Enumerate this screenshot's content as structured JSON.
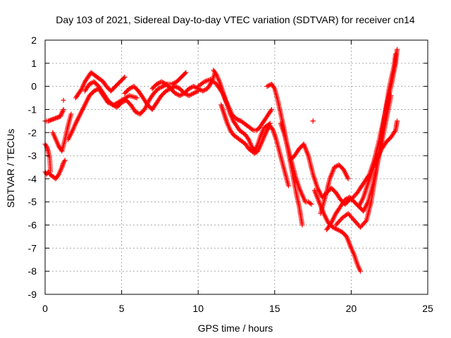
{
  "chart_data": {
    "type": "scatter",
    "title": "Day 103 of 2021, Sidereal Day-to-day VTEC variation (SDTVAR) for receiver cn14",
    "xlabel": "GPS time / hours",
    "ylabel": "SDTVAR / TECUs",
    "xlim": [
      0,
      25
    ],
    "ylim": [
      -9,
      2
    ],
    "xticks": [
      "0",
      "5",
      "10",
      "15",
      "20",
      "25"
    ],
    "yticks": [
      "2",
      "1",
      "0",
      "-1",
      "-2",
      "-3",
      "-4",
      "-5",
      "-6",
      "-7",
      "-8",
      "-9"
    ],
    "grid": true,
    "marker": "+",
    "color": "#ff0000",
    "series": [
      {
        "x": [
          0.0,
          0.1,
          0.2,
          0.3,
          0.5,
          0.7,
          0.9,
          1.1,
          1.2,
          1.3
        ],
        "y": [
          -3.7,
          -3.8,
          -3.7,
          -3.8,
          -3.9,
          -4.0,
          -3.8,
          -3.5,
          -3.3,
          -3.2
        ]
      },
      {
        "x": [
          0.0,
          0.1,
          0.2,
          0.3,
          0.35
        ],
        "y": [
          -2.5,
          -2.6,
          -2.8,
          -3.1,
          -3.7
        ]
      },
      {
        "x": [
          0.0,
          0.2,
          0.4,
          0.6,
          0.8,
          1.0,
          1.1,
          1.2
        ],
        "y": [
          -1.5,
          -1.5,
          -1.45,
          -1.4,
          -1.35,
          -1.3,
          -1.15,
          -1.0
        ]
      },
      {
        "x": [
          0.5,
          0.7,
          0.9,
          1.1,
          1.3,
          1.5,
          1.7
        ],
        "y": [
          -2.0,
          -2.3,
          -2.6,
          -2.8,
          -2.3,
          -1.7,
          -1.2
        ]
      },
      {
        "x": [
          1.5,
          1.8,
          2.0,
          2.3,
          2.6,
          2.9,
          3.2,
          3.5,
          3.8,
          4.1,
          4.5,
          5.0,
          5.5,
          6.0
        ],
        "y": [
          -2.3,
          -1.9,
          -1.6,
          -1.2,
          -0.8,
          -0.4,
          -0.2,
          -0.1,
          -0.4,
          -0.7,
          -0.8,
          -0.6,
          -0.4,
          -0.5
        ]
      },
      {
        "x": [
          2.0,
          2.2,
          2.4,
          2.6,
          2.8,
          3.0,
          3.2,
          3.4,
          3.6,
          3.8,
          4.0,
          4.3,
          4.6,
          4.9,
          5.2
        ],
        "y": [
          -0.5,
          -0.3,
          -0.1,
          0.2,
          0.4,
          0.6,
          0.5,
          0.4,
          0.3,
          0.2,
          0.0,
          -0.2,
          0.0,
          0.2,
          0.4
        ]
      },
      {
        "x": [
          2.6,
          2.9,
          3.2,
          3.5,
          3.8,
          4.1,
          4.4,
          4.7,
          5.0,
          5.3,
          5.6,
          5.9,
          6.2,
          6.5,
          6.8,
          7.1,
          7.4,
          7.7,
          8.0,
          8.3,
          8.6,
          8.9,
          9.2
        ],
        "y": [
          -0.2,
          0.1,
          0.2,
          0.0,
          -0.3,
          -0.6,
          -0.8,
          -0.9,
          -0.7,
          -0.6,
          -0.8,
          -1.1,
          -1.2,
          -1.0,
          -0.6,
          -0.3,
          -0.1,
          0.0,
          0.1,
          0.1,
          0.2,
          0.4,
          0.6
        ]
      },
      {
        "x": [
          5.2,
          5.5,
          5.8,
          6.1,
          6.4,
          6.7,
          7.0,
          7.3,
          7.6,
          7.9,
          8.2,
          8.5,
          8.8,
          9.1,
          9.4,
          9.7,
          10.0
        ],
        "y": [
          -0.3,
          -0.1,
          0.0,
          -0.2,
          -0.5,
          -0.8,
          -1.0,
          -0.7,
          -0.4,
          -0.2,
          -0.1,
          0.0,
          -0.1,
          -0.3,
          -0.4,
          -0.3,
          -0.2
        ]
      },
      {
        "x": [
          7.0,
          7.3,
          7.6,
          7.9,
          8.2,
          8.5,
          8.8,
          9.1,
          9.4,
          9.7,
          10.0,
          10.3,
          10.6,
          10.9,
          11.1
        ],
        "y": [
          -0.1,
          0.1,
          0.2,
          0.1,
          -0.1,
          -0.3,
          -0.4,
          -0.3,
          -0.1,
          0.0,
          -0.1,
          -0.2,
          -0.1,
          0.2,
          0.6
        ]
      },
      {
        "x": [
          11.0,
          11.2,
          11.4,
          11.6,
          11.8,
          12.0,
          12.2,
          12.4,
          12.6,
          12.8,
          13.0,
          13.2,
          13.4,
          13.6,
          13.8,
          14.0,
          14.2,
          14.4,
          14.6,
          14.8
        ],
        "y": [
          0.7,
          0.5,
          0.2,
          -0.2,
          -0.6,
          -0.9,
          -1.2,
          -1.35,
          -1.45,
          -1.5,
          -1.6,
          -1.7,
          -1.8,
          -1.9,
          -1.9,
          -1.8,
          -1.6,
          -1.4,
          -1.2,
          -1.0
        ]
      },
      {
        "x": [
          10.0,
          10.4,
          10.8,
          11.2,
          11.6,
          11.9,
          12.1,
          12.3,
          12.5,
          12.7,
          12.9,
          13.1,
          13.3,
          13.5,
          13.7,
          13.9,
          14.1,
          14.3,
          14.5,
          14.7
        ],
        "y": [
          0.0,
          0.2,
          0.3,
          0.1,
          -0.3,
          -0.8,
          -1.2,
          -1.5,
          -1.7,
          -1.9,
          -2.0,
          -2.1,
          -2.3,
          -2.6,
          -2.8,
          -2.5,
          -2.1,
          -1.8,
          -1.7,
          -1.6
        ]
      },
      {
        "x": [
          11.5,
          11.7,
          11.9,
          12.1,
          12.3,
          12.5,
          12.7,
          12.9,
          13.1,
          13.3,
          13.5,
          13.7,
          13.9,
          14.1,
          14.3,
          14.5,
          14.7,
          14.9,
          15.1,
          15.3,
          15.5,
          15.7,
          15.9
        ],
        "y": [
          -0.8,
          -1.2,
          -1.6,
          -1.9,
          -2.1,
          -2.2,
          -2.3,
          -2.4,
          -2.5,
          -2.7,
          -2.8,
          -2.9,
          -2.8,
          -2.5,
          -2.2,
          -1.9,
          -1.7,
          -1.9,
          -2.3,
          -2.8,
          -3.3,
          -3.8,
          -4.3
        ]
      },
      {
        "x": [
          14.5,
          14.8,
          15.0,
          15.2,
          15.4,
          15.6,
          15.8,
          16.0,
          16.2,
          16.4,
          16.6,
          16.8
        ],
        "y": [
          0.0,
          0.1,
          -0.1,
          -0.6,
          -1.2,
          -1.8,
          -2.5,
          -3.2,
          -3.9,
          -4.6,
          -5.2,
          -6.0
        ]
      },
      {
        "x": [
          15.4,
          15.6,
          15.8,
          16.0,
          16.2,
          16.4,
          16.6,
          16.8,
          17.0,
          17.2,
          17.4
        ],
        "y": [
          -1.6,
          -2.0,
          -2.5,
          -3.0,
          -3.5,
          -4.0,
          -4.4,
          -4.7,
          -5.0,
          -5.0,
          -5.1
        ]
      },
      {
        "x": [
          16.0,
          16.3,
          16.6,
          16.9,
          17.2,
          17.5,
          17.8,
          18.1,
          18.4,
          18.7,
          19.0,
          19.3,
          19.6,
          19.9
        ],
        "y": [
          -3.2,
          -3.0,
          -2.7,
          -2.5,
          -3.0,
          -3.8,
          -4.4,
          -4.8,
          -4.6,
          -4.4,
          -4.6,
          -4.9,
          -5.1,
          -4.9
        ]
      },
      {
        "x": [
          17.6,
          17.9,
          18.2,
          18.5,
          18.8,
          19.1,
          19.4,
          19.7,
          20.0,
          20.2,
          20.4,
          20.6
        ],
        "y": [
          -4.5,
          -5.0,
          -5.5,
          -5.9,
          -6.1,
          -6.2,
          -6.3,
          -6.5,
          -7.0,
          -7.3,
          -7.7,
          -8.0
        ]
      },
      {
        "x": [
          18.0,
          18.3,
          18.6,
          18.9,
          19.2,
          19.5,
          19.8
        ],
        "y": [
          -5.5,
          -4.8,
          -4.0,
          -3.5,
          -3.4,
          -3.6,
          -4.0
        ]
      },
      {
        "x": [
          18.4,
          18.7,
          19.0,
          19.3,
          19.6,
          19.9,
          20.2,
          20.5,
          20.8,
          21.1,
          21.4,
          21.7,
          22.0,
          22.3,
          22.6
        ],
        "y": [
          -6.2,
          -5.9,
          -5.5,
          -5.2,
          -4.9,
          -4.8,
          -5.0,
          -5.2,
          -5.4,
          -5.0,
          -4.3,
          -3.4,
          -2.4,
          -1.4,
          -0.4
        ]
      },
      {
        "x": [
          19.0,
          19.4,
          19.8,
          20.2,
          20.6,
          21.0,
          21.3,
          21.6,
          21.9,
          22.2,
          22.5,
          22.8,
          22.9
        ],
        "y": [
          -6.0,
          -5.7,
          -5.5,
          -5.8,
          -6.1,
          -5.8,
          -5.0,
          -3.8,
          -2.5,
          -1.2,
          0.0,
          0.9,
          1.4
        ]
      },
      {
        "x": [
          20.5,
          20.8,
          21.1,
          21.4,
          21.7,
          22.0,
          22.3,
          22.6,
          22.9,
          23.0
        ],
        "y": [
          -5.2,
          -4.8,
          -4.2,
          -3.6,
          -3.1,
          -2.7,
          -2.4,
          -2.2,
          -1.9,
          -1.5
        ]
      },
      {
        "x": [
          20.0,
          20.4,
          20.8,
          21.2,
          21.5,
          21.8,
          22.1,
          22.4,
          22.7,
          22.9,
          23.0
        ],
        "y": [
          -4.9,
          -4.6,
          -4.2,
          -3.8,
          -3.2,
          -2.4,
          -1.5,
          -0.6,
          0.3,
          1.0,
          1.6
        ]
      },
      {
        "x": [
          1.2,
          17.5
        ],
        "y": [
          -0.6,
          -1.5
        ]
      }
    ]
  }
}
